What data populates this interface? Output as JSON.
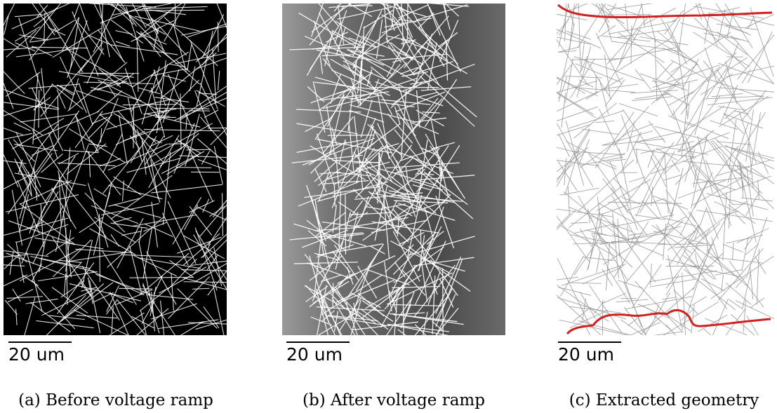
{
  "panels": [
    {
      "scale_bar": "20 um",
      "caption": "(a) Before voltage ramp"
    },
    {
      "scale_bar": "20 um",
      "caption": "(b) After voltage ramp"
    },
    {
      "scale_bar": "20 um",
      "caption": "(c) Extracted geometry"
    }
  ]
}
